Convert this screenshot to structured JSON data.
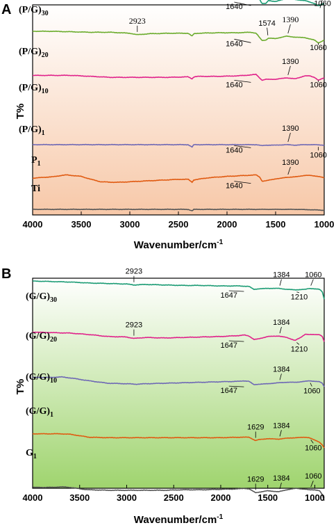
{
  "chart_data": [
    {
      "panel": "A",
      "type": "line",
      "ylabel": "T%",
      "xlabel": "Wavenumber/cm",
      "xlabel_sup": "-1",
      "xlim": [
        4000,
        1000
      ],
      "xticks": [
        "4000",
        "3500",
        "3000",
        "2500",
        "2000",
        "1500",
        "1000"
      ],
      "background": [
        "#ffffff",
        "#f7c8a8"
      ],
      "series": [
        {
          "name": "(P/G)",
          "sub": "30",
          "color": "#1a9b74",
          "x": [
            4000,
            3800,
            3600,
            3400,
            3200,
            3000,
            2923,
            2800,
            2600,
            2400,
            2360,
            2340,
            2300,
            2100,
            1900,
            1750,
            1700,
            1640,
            1600,
            1574,
            1500,
            1390,
            1300,
            1200,
            1100,
            1060,
            1000
          ],
          "y": [
            0.9,
            0.9,
            0.9,
            0.89,
            0.9,
            0.9,
            0.87,
            0.9,
            0.91,
            0.91,
            0.84,
            0.89,
            0.91,
            0.91,
            0.92,
            0.92,
            0.91,
            0.7,
            0.7,
            0.76,
            0.74,
            0.8,
            0.78,
            0.76,
            0.7,
            0.65,
            0.7
          ]
        },
        {
          "name": "(P/G)",
          "sub": "20",
          "color": "#6aab2b",
          "x": [
            4000,
            3800,
            3600,
            3400,
            3200,
            3000,
            2923,
            2800,
            2600,
            2400,
            2360,
            2340,
            2300,
            2100,
            1900,
            1750,
            1700,
            1640,
            1600,
            1574,
            1500,
            1390,
            1300,
            1200,
            1100,
            1060,
            1000
          ],
          "y": [
            0.7,
            0.7,
            0.69,
            0.68,
            0.68,
            0.66,
            0.63,
            0.65,
            0.66,
            0.66,
            0.6,
            0.65,
            0.66,
            0.67,
            0.67,
            0.68,
            0.66,
            0.51,
            0.52,
            0.56,
            0.55,
            0.6,
            0.58,
            0.57,
            0.52,
            0.46,
            0.52
          ]
        },
        {
          "name": "(P/G)",
          "sub": "10",
          "color": "#e0218a",
          "x": [
            4000,
            3800,
            3600,
            3400,
            3200,
            3000,
            2800,
            2600,
            2400,
            2360,
            2340,
            2300,
            2100,
            1900,
            1750,
            1700,
            1640,
            1600,
            1500,
            1390,
            1300,
            1200,
            1150,
            1100,
            1060,
            1000
          ],
          "y": [
            0.48,
            0.48,
            0.48,
            0.46,
            0.44,
            0.44,
            0.44,
            0.44,
            0.45,
            0.41,
            0.45,
            0.46,
            0.46,
            0.47,
            0.49,
            0.5,
            0.38,
            0.4,
            0.4,
            0.43,
            0.41,
            0.47,
            0.47,
            0.44,
            0.38,
            0.43
          ]
        },
        {
          "name": "(P/G)",
          "sub": "1",
          "color": "#6e68b5",
          "x": [
            4000,
            3800,
            3600,
            3400,
            3200,
            3000,
            2800,
            2600,
            2400,
            2360,
            2340,
            2300,
            2100,
            1900,
            1750,
            1700,
            1640,
            1600,
            1500,
            1390,
            1300,
            1200,
            1100,
            1000
          ],
          "y": [
            0.3,
            0.3,
            0.3,
            0.3,
            0.3,
            0.3,
            0.3,
            0.3,
            0.3,
            0.25,
            0.3,
            0.3,
            0.3,
            0.3,
            0.3,
            0.3,
            0.28,
            0.29,
            0.29,
            0.3,
            0.29,
            0.3,
            0.3,
            0.29
          ]
        },
        {
          "name": "P",
          "sub": "1",
          "color": "#e05a10",
          "x": [
            4000,
            3900,
            3800,
            3700,
            3650,
            3500,
            3400,
            3300,
            3200,
            3100,
            3000,
            2900,
            2800,
            2700,
            2600,
            2500,
            2400,
            2360,
            2340,
            2300,
            2200,
            2000,
            1800,
            1700,
            1660,
            1640,
            1600,
            1500,
            1450,
            1390,
            1300,
            1200,
            1150,
            1100,
            1060,
            1000
          ],
          "y": [
            0.18,
            0.2,
            0.21,
            0.24,
            0.25,
            0.22,
            0.16,
            0.11,
            0.1,
            0.1,
            0.11,
            0.12,
            0.13,
            0.14,
            0.15,
            0.16,
            0.16,
            0.1,
            0.15,
            0.16,
            0.19,
            0.22,
            0.24,
            0.25,
            0.2,
            0.12,
            0.13,
            0.17,
            0.18,
            0.2,
            0.21,
            0.24,
            0.24,
            0.23,
            0.22,
            0.19
          ]
        },
        {
          "name": "Ti",
          "sub": "",
          "color": "#555555",
          "x": [
            4000,
            3800,
            3600,
            3400,
            3200,
            3000,
            2800,
            2600,
            2400,
            2360,
            2340,
            2300,
            2100,
            1900,
            1700,
            1500,
            1300,
            1100,
            1000
          ],
          "y": [
            0.0,
            0.0,
            0.0,
            0.0,
            0.0,
            0.0,
            0.0,
            0.0,
            0.0,
            -0.03,
            0.0,
            0.0,
            0.0,
            0.0,
            0.0,
            0.0,
            0.0,
            -0.01,
            -0.02
          ]
        }
      ],
      "annotations": [
        {
          "text": "2923",
          "series": 0,
          "x": 2923
        },
        {
          "text": "1574",
          "series": 0,
          "x": 1574
        },
        {
          "text": "1390",
          "series": 0,
          "x": 1390
        },
        {
          "text": "1640",
          "series": 0,
          "x": 1640
        },
        {
          "text": "1060",
          "series": 0,
          "x": 1060
        },
        {
          "text": "2923",
          "series": 1,
          "x": 2923
        },
        {
          "text": "1574",
          "series": 1,
          "x": 1574
        },
        {
          "text": "1390",
          "series": 1,
          "x": 1390
        },
        {
          "text": "1640",
          "series": 1,
          "x": 1640
        },
        {
          "text": "1060",
          "series": 1,
          "x": 1060
        },
        {
          "text": "1390",
          "series": 2,
          "x": 1390
        },
        {
          "text": "1640",
          "series": 2,
          "x": 1640
        },
        {
          "text": "1060",
          "series": 2,
          "x": 1060
        },
        {
          "text": "1390",
          "series": 3,
          "x": 1390
        },
        {
          "text": "1640",
          "series": 3,
          "x": 1640
        },
        {
          "text": "1060",
          "series": 3,
          "x": 1060
        },
        {
          "text": "1390",
          "series": 4,
          "x": 1390
        },
        {
          "text": "1640",
          "series": 4,
          "x": 1640
        }
      ]
    },
    {
      "panel": "B",
      "type": "line",
      "ylabel": "T%",
      "xlabel": "Wavenumber/cm",
      "xlabel_sup": "-1",
      "xlim": [
        4000,
        900
      ],
      "xticks": [
        "4000",
        "3500",
        "3000",
        "2500",
        "2000",
        "1500",
        "1000"
      ],
      "background": [
        "#ffffff",
        "#9fd46e"
      ],
      "series": [
        {
          "name": "(G/G)",
          "sub": "30",
          "color": "#1a9b74",
          "x": [
            4000,
            3800,
            3600,
            3400,
            3200,
            3000,
            2923,
            2800,
            2600,
            2400,
            2200,
            2000,
            1800,
            1700,
            1647,
            1600,
            1500,
            1384,
            1300,
            1210,
            1100,
            1060,
            950,
            920,
            900
          ],
          "y": [
            0.97,
            0.96,
            0.95,
            0.93,
            0.92,
            0.91,
            0.89,
            0.9,
            0.89,
            0.88,
            0.88,
            0.87,
            0.87,
            0.86,
            0.8,
            0.81,
            0.82,
            0.82,
            0.8,
            0.79,
            0.8,
            0.82,
            0.8,
            0.75,
            0.6
          ]
        },
        {
          "name": "(G/G)",
          "sub": "20",
          "color": "#e0218a",
          "x": [
            4000,
            3800,
            3600,
            3400,
            3200,
            3000,
            2923,
            2800,
            2600,
            2400,
            2200,
            2000,
            1800,
            1750,
            1700,
            1647,
            1600,
            1500,
            1384,
            1300,
            1210,
            1150,
            1100,
            1060,
            950,
            920,
            900
          ],
          "y": [
            0.75,
            0.74,
            0.73,
            0.7,
            0.66,
            0.65,
            0.62,
            0.64,
            0.63,
            0.64,
            0.65,
            0.66,
            0.68,
            0.69,
            0.67,
            0.6,
            0.61,
            0.66,
            0.67,
            0.64,
            0.58,
            0.64,
            0.71,
            0.7,
            0.7,
            0.66,
            0.55
          ]
        },
        {
          "name": "(G/G)",
          "sub": "10",
          "color": "#6e68b5",
          "x": [
            4000,
            3800,
            3700,
            3600,
            3400,
            3200,
            3000,
            2900,
            2800,
            2600,
            2400,
            2200,
            2000,
            1800,
            1750,
            1700,
            1647,
            1600,
            1500,
            1384,
            1300,
            1200,
            1100,
            1060,
            1000,
            950,
            920,
            900
          ],
          "y": [
            0.52,
            0.52,
            0.53,
            0.51,
            0.45,
            0.4,
            0.39,
            0.38,
            0.39,
            0.4,
            0.41,
            0.42,
            0.43,
            0.44,
            0.45,
            0.44,
            0.37,
            0.38,
            0.39,
            0.41,
            0.42,
            0.42,
            0.44,
            0.45,
            0.44,
            0.43,
            0.4,
            0.33
          ]
        },
        {
          "name": "(G/G)",
          "sub": "1",
          "color": "#e05a10",
          "x": [
            4000,
            3800,
            3700,
            3600,
            3500,
            3400,
            3200,
            3000,
            2800,
            2600,
            2400,
            2200,
            2000,
            1800,
            1700,
            1629,
            1600,
            1500,
            1384,
            1300,
            1200,
            1100,
            1060,
            1000,
            950,
            920,
            900
          ],
          "y": [
            0.29,
            0.29,
            0.29,
            0.28,
            0.25,
            0.22,
            0.21,
            0.21,
            0.21,
            0.21,
            0.21,
            0.21,
            0.21,
            0.22,
            0.22,
            0.15,
            0.17,
            0.19,
            0.18,
            0.2,
            0.21,
            0.22,
            0.21,
            0.16,
            0.12,
            0.06,
            0.0
          ]
        },
        {
          "name": "G",
          "sub": "1",
          "color": "#555555",
          "x": [
            4000,
            3800,
            3700,
            3600,
            3500,
            3400,
            3200,
            3000,
            2800,
            2600,
            2400,
            2200,
            2000,
            1800,
            1750,
            1700,
            1629,
            1600,
            1500,
            1384,
            1300,
            1200,
            1100,
            1060,
            1000,
            950,
            920,
            900
          ],
          "y": [
            0.09,
            0.09,
            0.1,
            0.09,
            0.06,
            0.04,
            0.03,
            0.03,
            0.03,
            0.03,
            0.04,
            0.04,
            0.05,
            0.06,
            0.07,
            0.06,
            -0.02,
            -0.01,
            0.02,
            0.0,
            0.04,
            0.07,
            0.05,
            0.04,
            0.04,
            0.02,
            -0.06,
            -0.18
          ]
        }
      ],
      "annotations": [
        {
          "text": "2923",
          "series": 0,
          "x": 2923
        },
        {
          "text": "1384",
          "series": 0,
          "x": 1384
        },
        {
          "text": "1060",
          "series": 0,
          "x": 1060
        },
        {
          "text": "1647",
          "series": 0,
          "x": 1647
        },
        {
          "text": "1210",
          "series": 0,
          "x": 1210
        },
        {
          "text": "2923",
          "series": 1,
          "x": 2923
        },
        {
          "text": "1384",
          "series": 1,
          "x": 1384
        },
        {
          "text": "1647",
          "series": 1,
          "x": 1647
        },
        {
          "text": "1210",
          "series": 1,
          "x": 1210
        },
        {
          "text": "1384",
          "series": 2,
          "x": 1384
        },
        {
          "text": "1647",
          "series": 2,
          "x": 1647
        },
        {
          "text": "1060",
          "series": 2,
          "x": 1060
        },
        {
          "text": "1629",
          "series": 3,
          "x": 1629
        },
        {
          "text": "1384",
          "series": 3,
          "x": 1384
        },
        {
          "text": "1060",
          "series": 3,
          "x": 1060
        },
        {
          "text": "1629",
          "series": 4,
          "x": 1629
        },
        {
          "text": "1384",
          "series": 4,
          "x": 1384
        },
        {
          "text": "1060",
          "series": 4,
          "x": 1060
        }
      ]
    }
  ]
}
